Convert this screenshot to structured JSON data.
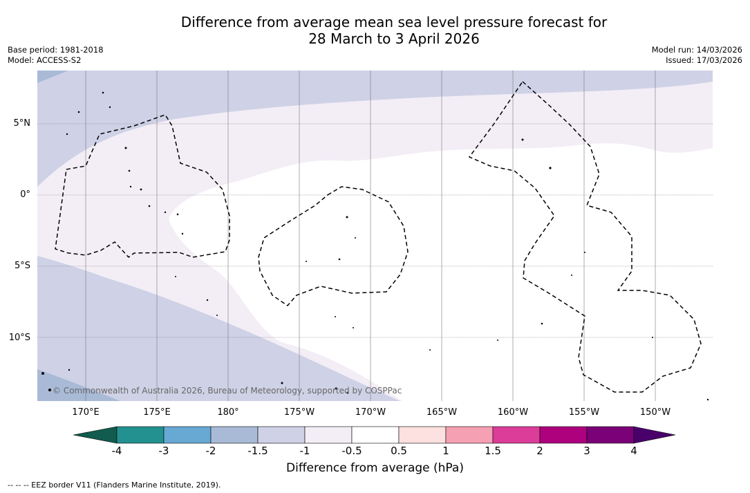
{
  "title": {
    "line1": "Difference from average mean sea level pressure forecast for",
    "line2": "28 March to 3 April 2026"
  },
  "meta_left": {
    "base_period": "Base period: 1981-2018",
    "model": "Model: ACCESS-S2"
  },
  "meta_right": {
    "model_run": "Model run: 14/03/2026",
    "issued": "Issued: 17/03/2026"
  },
  "map": {
    "lat_labels": [
      "5°N",
      "0°",
      "5°S",
      "10°S"
    ],
    "lon_labels": [
      "170°E",
      "175°E",
      "180°",
      "175°W",
      "170°W",
      "165°W",
      "160°W",
      "155°W",
      "150°W"
    ],
    "copyright": "© Commonwealth of Australia 2026, Bureau of Meteorology, supported by COSPPac",
    "colors": {
      "minus1_5_to_minus1": "#cfd1e6",
      "minus2_to_minus1_5": "#a8bad6",
      "minus1_to_minus0_5": "#f3edf6",
      "near_zero": "#ffffff"
    }
  },
  "colorbar": {
    "tick_labels": [
      "-4",
      "-3",
      "-2",
      "-1.5",
      "-1",
      "-0.5",
      "0.5",
      "1",
      "1.5",
      "2",
      "3",
      "4"
    ],
    "colors": [
      "#115c4e",
      "#23918f",
      "#68a9d3",
      "#a8bad6",
      "#cfd1e6",
      "#f3edf6",
      "#ffffff",
      "#fde0e0",
      "#f6a0b3",
      "#db3d99",
      "#ae017e",
      "#7a0177",
      "#49006a"
    ],
    "label": "Difference from average (hPa)"
  },
  "footnote": "--  --  -- EEZ border V11 (Flanders Marine Institute, 2019)."
}
